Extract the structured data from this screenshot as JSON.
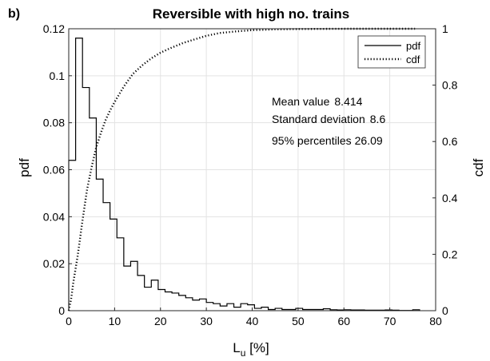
{
  "chart_data": {
    "type": "histogram_with_cdf",
    "panel_label": "b)",
    "title": "Reversible with high no. trains",
    "xlabel_main": "L",
    "xlabel_sub": "u",
    "xlabel_unit": " [%]",
    "ylabel_left": "pdf",
    "ylabel_right": "cdf",
    "xlim": [
      0,
      80
    ],
    "ylim_left": [
      0,
      0.12
    ],
    "ylim_right": [
      0,
      1
    ],
    "x_ticks": [
      0,
      10,
      20,
      30,
      40,
      50,
      60,
      70,
      80
    ],
    "x_tick_labels": [
      "0",
      "10",
      "20",
      "30",
      "40",
      "50",
      "60",
      "70",
      "80"
    ],
    "y_left_ticks": [
      0,
      0.02,
      0.04,
      0.06,
      0.08,
      0.1,
      0.12
    ],
    "y_left_tick_labels": [
      "0",
      "0.02",
      "0.04",
      "0.06",
      "0.08",
      "0.1",
      "0.12"
    ],
    "y_right_ticks": [
      0,
      0.2,
      0.4,
      0.6,
      0.8,
      1
    ],
    "y_right_tick_labels": [
      "0",
      "0.2",
      "0.4",
      "0.6",
      "0.8",
      "1"
    ],
    "grid": true,
    "legend_position": "top-right",
    "legend": [
      {
        "label": "pdf",
        "style": "solid"
      },
      {
        "label": "cdf",
        "style": "dotted"
      }
    ],
    "annotations": [
      {
        "label": "Mean value",
        "value": "8.414"
      },
      {
        "label": "Standard deviation",
        "value": "8.6"
      },
      {
        "label": "95% percentiles",
        "value": "26.09"
      }
    ],
    "pdf_bins": {
      "edges": [
        0,
        1.5,
        3,
        4.5,
        6,
        7.5,
        9,
        10.5,
        12,
        13.5,
        15,
        16.5,
        18,
        19.5,
        21,
        22.5,
        24,
        25.5,
        27,
        28.5,
        30,
        31.5,
        33,
        34.5,
        36,
        37.5,
        39,
        40.5,
        42,
        43.5,
        45,
        46.5,
        48,
        49.5,
        51,
        52.5,
        54,
        55.5,
        57,
        58.5,
        60,
        61.5,
        63,
        64.5,
        66,
        67.5,
        69,
        70.5,
        72,
        73.5,
        75,
        76.5
      ],
      "values": [
        0.064,
        0.116,
        0.095,
        0.082,
        0.056,
        0.046,
        0.039,
        0.031,
        0.019,
        0.021,
        0.015,
        0.01,
        0.013,
        0.009,
        0.008,
        0.0075,
        0.0065,
        0.0055,
        0.0045,
        0.005,
        0.0035,
        0.003,
        0.002,
        0.003,
        0.0015,
        0.003,
        0.0025,
        0.001,
        0.0015,
        0.0005,
        0.001,
        0.0005,
        0.0005,
        0.001,
        0.0005,
        0.0005,
        0.0005,
        0.0008,
        0.0004,
        0.0003,
        0.0004,
        0.0003,
        0.0003,
        0.0002,
        0.0002,
        0.0002,
        0.0003,
        0.0002,
        0.0001,
        0.0001,
        0.0004
      ]
    },
    "cdf": {
      "x": [
        0,
        0.5,
        1,
        2,
        3,
        4,
        5,
        6,
        7,
        8,
        9,
        10,
        12,
        14,
        16,
        18,
        20,
        22,
        25,
        28,
        30,
        33,
        36,
        40,
        45,
        50,
        55,
        60,
        65,
        70,
        75.5
      ],
      "y": [
        0,
        0.04,
        0.1,
        0.2,
        0.32,
        0.43,
        0.51,
        0.58,
        0.63,
        0.675,
        0.71,
        0.74,
        0.795,
        0.84,
        0.87,
        0.895,
        0.915,
        0.93,
        0.95,
        0.965,
        0.975,
        0.985,
        0.99,
        0.995,
        0.998,
        0.999,
        0.9995,
        1,
        1,
        1,
        1
      ]
    }
  }
}
